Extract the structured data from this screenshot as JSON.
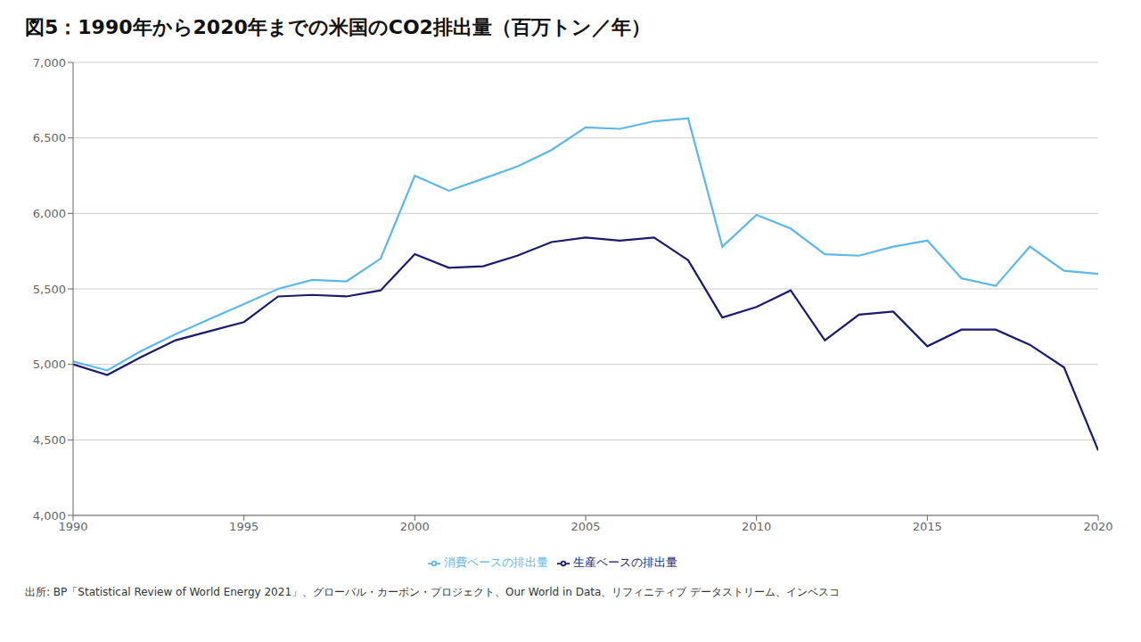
{
  "chart_data": {
    "type": "line",
    "title": "図5：1990年から2020年までの米国のCO2排出量（百万トン／年）",
    "annotations": [
      "出所: BP「Statistical Review of World Energy 2021」、グローバル・カーボン・プロジェクト、Our World in Data、リフィニティブ データストリーム、インベスコ"
    ],
    "x": [
      1990,
      1991,
      1992,
      1993,
      1994,
      1995,
      1996,
      1997,
      1998,
      1999,
      2000,
      2001,
      2002,
      2003,
      2004,
      2005,
      2006,
      2007,
      2008,
      2009,
      2010,
      2011,
      2012,
      2013,
      2014,
      2015,
      2016,
      2017,
      2018,
      2019,
      2020
    ],
    "series": [
      {
        "name": "生産ベースの排出量",
        "color": "#1a1a6e",
        "values": [
          5000,
          4930,
          5050,
          5160,
          5220,
          5280,
          5450,
          5460,
          5450,
          5490,
          5730,
          5640,
          5650,
          5720,
          5810,
          5840,
          5820,
          5840,
          5690,
          5310,
          5380,
          5490,
          5160,
          5330,
          5350,
          5120,
          5230,
          5230,
          5130,
          4980,
          4430
        ]
      },
      {
        "name": "消費ベースの排出量",
        "color": "#5bb8e8",
        "values": [
          5020,
          4960,
          5090,
          5200,
          5300,
          5400,
          5500,
          5560,
          5550,
          5700,
          6250,
          6150,
          6230,
          6310,
          6420,
          6570,
          6560,
          6610,
          6630,
          5780,
          5990,
          5900,
          5730,
          5720,
          5780,
          5820,
          5570,
          5520,
          5780,
          5620,
          5600
        ]
      }
    ],
    "xlim": [
      1990,
      2020
    ],
    "xticks": [
      1990,
      1995,
      2000,
      2005,
      2010,
      2015,
      2020
    ],
    "ylim": [
      4000,
      7000
    ],
    "yticks": [
      {
        "value": 4000,
        "label": "4,000"
      },
      {
        "value": 4500,
        "label": "4,500"
      },
      {
        "value": 5000,
        "label": "5,000"
      },
      {
        "value": 5500,
        "label": "5,500"
      },
      {
        "value": 6000,
        "label": "6,000"
      },
      {
        "value": 6500,
        "label": "6,500"
      },
      {
        "value": 7000,
        "label": "7,000"
      }
    ],
    "grid": true,
    "legend": "bottom"
  }
}
